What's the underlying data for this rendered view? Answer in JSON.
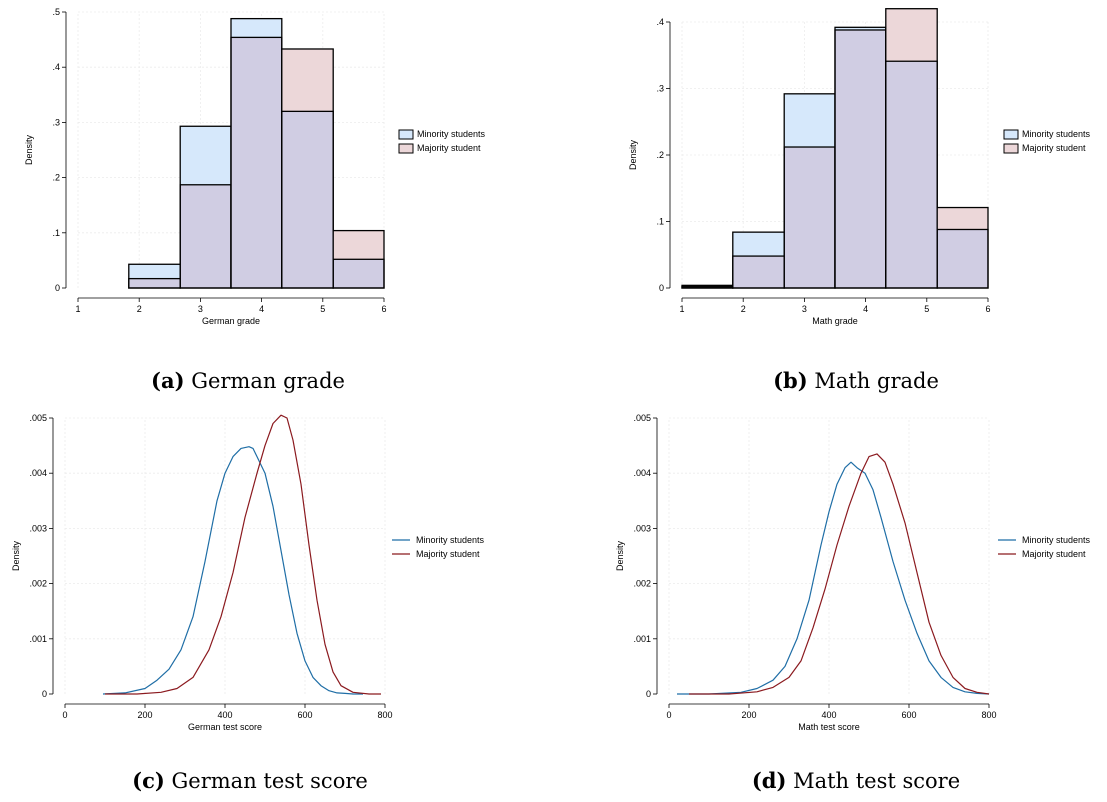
{
  "colors": {
    "minority_fill": "#d6e8fb",
    "majority_fill": "#ecd7d9",
    "overlap_fill": "#d0cde3",
    "minority_line": "#1f6ea6",
    "majority_line": "#8b1a1f"
  },
  "chart_data": [
    {
      "type": "bar",
      "caption_label": "(a)",
      "caption_text": "German grade",
      "xlabel": "German grade",
      "ylabel": "Density",
      "xlim": [
        1,
        6
      ],
      "ylim": [
        0,
        0.5
      ],
      "xticks": [
        1,
        2,
        3,
        4,
        5,
        6
      ],
      "yticks": [
        0,
        0.1,
        0.2,
        0.3,
        0.4,
        0.5
      ],
      "ytick_labels": [
        "0",
        ".1",
        ".2",
        ".3",
        ".4",
        ".5"
      ],
      "bins": [
        [
          1,
          1.83
        ],
        [
          1.83,
          2.67
        ],
        [
          2.67,
          3.5
        ],
        [
          3.5,
          4.33
        ],
        [
          4.33,
          5.17
        ],
        [
          5.17,
          6
        ]
      ],
      "series": [
        {
          "name": "Minority students",
          "values": [
            0.0,
            0.043,
            0.293,
            0.488,
            0.32,
            0.052
          ]
        },
        {
          "name": "Majority student",
          "values": [
            0.0,
            0.017,
            0.187,
            0.454,
            0.433,
            0.104
          ]
        }
      ],
      "legend": "right"
    },
    {
      "type": "bar",
      "caption_label": "(b)",
      "caption_text": "Math grade",
      "xlabel": "Math grade",
      "ylabel": "Density",
      "xlim": [
        1,
        6
      ],
      "ylim": [
        0,
        0.4
      ],
      "xticks": [
        1,
        2,
        3,
        4,
        5,
        6
      ],
      "yticks": [
        0,
        0.1,
        0.2,
        0.3,
        0.4
      ],
      "ytick_labels": [
        "0",
        ".1",
        ".2",
        ".3",
        ".4"
      ],
      "bins": [
        [
          1,
          1.83
        ],
        [
          1.83,
          2.67
        ],
        [
          2.67,
          3.5
        ],
        [
          3.5,
          4.33
        ],
        [
          4.33,
          5.17
        ],
        [
          5.17,
          6
        ]
      ],
      "series": [
        {
          "name": "Minority students",
          "values": [
            0.004,
            0.084,
            0.292,
            0.392,
            0.341,
            0.088
          ]
        },
        {
          "name": "Majority student",
          "values": [
            0.002,
            0.048,
            0.212,
            0.388,
            0.42,
            0.121
          ]
        }
      ],
      "legend": "right"
    },
    {
      "type": "line",
      "caption_label": "(c)",
      "caption_text": "German test score",
      "xlabel": "German test score",
      "ylabel": "Density",
      "xlim": [
        0,
        800
      ],
      "ylim": [
        0,
        0.005
      ],
      "xticks": [
        0,
        200,
        400,
        600,
        800
      ],
      "yticks": [
        0,
        0.001,
        0.002,
        0.003,
        0.004,
        0.005
      ],
      "ytick_labels": [
        "0",
        ".001",
        ".002",
        ".003",
        ".004",
        ".005"
      ],
      "series": [
        {
          "name": "Minority students",
          "x": [
            95,
            150,
            200,
            230,
            260,
            290,
            320,
            350,
            380,
            400,
            420,
            440,
            460,
            470,
            480,
            500,
            520,
            540,
            560,
            580,
            600,
            620,
            640,
            660,
            680,
            700,
            720,
            745
          ],
          "y": [
            0.0,
            2e-05,
            0.0001,
            0.00025,
            0.00045,
            0.0008,
            0.0014,
            0.0024,
            0.0035,
            0.004,
            0.0043,
            0.00445,
            0.00448,
            0.00445,
            0.0043,
            0.004,
            0.0034,
            0.0026,
            0.0018,
            0.0011,
            0.0006,
            0.0003,
            0.00015,
            6e-05,
            2e-05,
            1e-05,
            0.0,
            0.0
          ]
        },
        {
          "name": "Majority student",
          "x": [
            100,
            180,
            240,
            280,
            320,
            360,
            390,
            420,
            450,
            480,
            500,
            520,
            540,
            555,
            570,
            590,
            610,
            630,
            650,
            670,
            690,
            720,
            760,
            790
          ],
          "y": [
            0.0,
            0.0,
            3e-05,
            0.0001,
            0.0003,
            0.0008,
            0.0014,
            0.0022,
            0.0032,
            0.004,
            0.0045,
            0.0049,
            0.00505,
            0.005,
            0.0046,
            0.0038,
            0.0027,
            0.0017,
            0.0009,
            0.0004,
            0.00015,
            3e-05,
            0.0,
            0.0
          ]
        }
      ],
      "legend": "right"
    },
    {
      "type": "line",
      "caption_label": "(d)",
      "caption_text": "Math test score",
      "xlabel": "Math test score",
      "ylabel": "Density",
      "xlim": [
        0,
        800
      ],
      "ylim": [
        0,
        0.005
      ],
      "xticks": [
        0,
        200,
        400,
        600,
        800
      ],
      "yticks": [
        0,
        0.001,
        0.002,
        0.003,
        0.004,
        0.005
      ],
      "ytick_labels": [
        "0",
        ".001",
        ".002",
        ".003",
        ".004",
        ".005"
      ],
      "series": [
        {
          "name": "Minority students",
          "x": [
            20,
            100,
            180,
            220,
            260,
            290,
            320,
            350,
            380,
            400,
            420,
            440,
            455,
            470,
            490,
            510,
            530,
            560,
            590,
            620,
            650,
            680,
            710,
            740,
            770,
            800
          ],
          "y": [
            0.0,
            0.0,
            3e-05,
            0.0001,
            0.00025,
            0.0005,
            0.001,
            0.0017,
            0.0027,
            0.0033,
            0.0038,
            0.0041,
            0.0042,
            0.0041,
            0.004,
            0.0037,
            0.0032,
            0.0024,
            0.0017,
            0.0011,
            0.0006,
            0.0003,
            0.00012,
            4e-05,
            1e-05,
            0.0
          ]
        },
        {
          "name": "Majority student",
          "x": [
            50,
            150,
            220,
            260,
            300,
            330,
            360,
            390,
            420,
            450,
            480,
            500,
            520,
            540,
            560,
            590,
            620,
            650,
            680,
            710,
            740,
            770,
            800
          ],
          "y": [
            0.0,
            0.0,
            4e-05,
            0.00012,
            0.0003,
            0.0006,
            0.0012,
            0.0019,
            0.0027,
            0.0034,
            0.004,
            0.0043,
            0.00435,
            0.0042,
            0.0038,
            0.0031,
            0.0022,
            0.0013,
            0.0007,
            0.0003,
            0.0001,
            3e-05,
            0.0
          ]
        }
      ],
      "legend": "right"
    }
  ]
}
